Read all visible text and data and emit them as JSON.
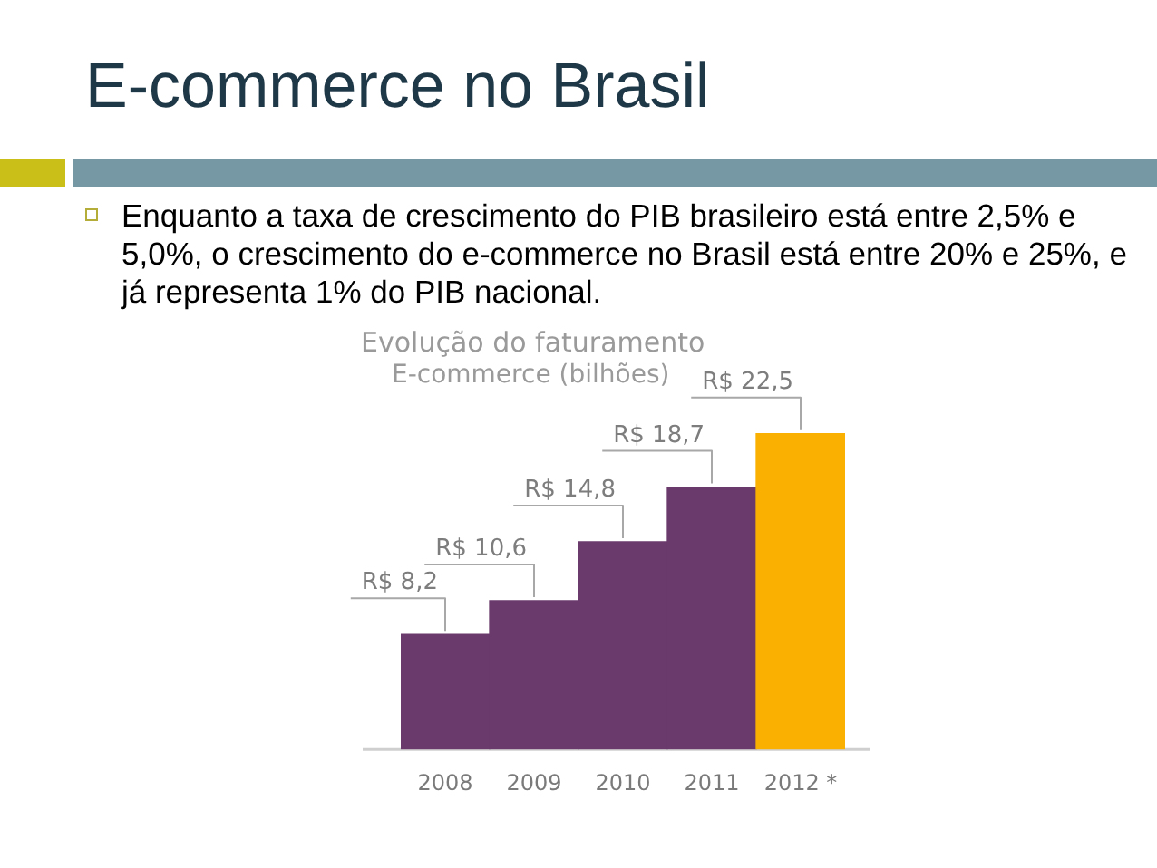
{
  "chart_data": {
    "type": "bar",
    "title": "E-commerce no Brasil",
    "subtitle": "Enquanto a taxa de crescimento do PIB brasileiro está entre 2,5% e 5,0%, o crescimento do e-commerce no Brasil está entre 20% e 25%, e já representa 1% do PIB nacional.",
    "annotations": [
      "Evolução do faturamento",
      "E-commerce (bilhões)"
    ],
    "categories": [
      "2008",
      "2009",
      "2010",
      "2011",
      "2012 *"
    ],
    "values": [
      8.2,
      10.6,
      14.8,
      18.7,
      22.5
    ],
    "colors": [
      "#6b3a6c",
      "#6b3a6c",
      "#6b3a6c",
      "#6b3a6c",
      "#f9b000"
    ],
    "value_labels": [
      "R$ 8,2",
      "R$ 10,6",
      "R$ 14,8",
      "R$ 18,7",
      "R$ 22,5"
    ]
  }
}
